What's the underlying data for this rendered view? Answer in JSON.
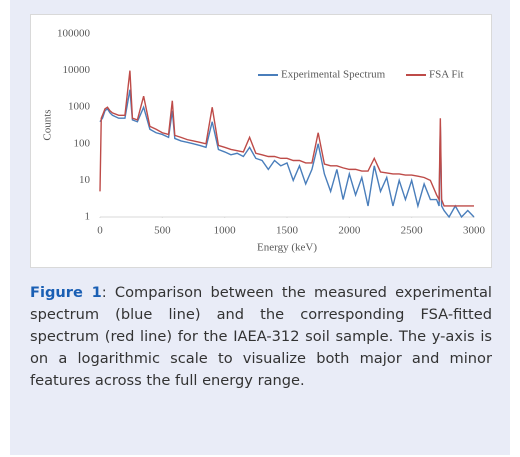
{
  "chart_data": {
    "type": "line",
    "xlabel": "Energy (keV)",
    "ylabel": "Counts",
    "xlim": [
      0,
      3000
    ],
    "xticks": [
      0,
      500,
      1000,
      1500,
      2000,
      2500,
      3000
    ],
    "ylim": [
      1,
      100000
    ],
    "yticks": [
      1,
      10,
      100,
      1000,
      10000,
      100000
    ],
    "yscale": "log",
    "grid": false,
    "x": [
      0,
      10,
      20,
      40,
      60,
      80,
      100,
      150,
      200,
      240,
      260,
      300,
      350,
      400,
      450,
      500,
      550,
      580,
      600,
      650,
      700,
      750,
      800,
      850,
      900,
      950,
      1000,
      1050,
      1100,
      1150,
      1200,
      1250,
      1300,
      1350,
      1400,
      1450,
      1500,
      1550,
      1600,
      1650,
      1700,
      1750,
      1800,
      1850,
      1900,
      1950,
      2000,
      2050,
      2100,
      2150,
      2200,
      2250,
      2300,
      2350,
      2400,
      2450,
      2500,
      2550,
      2600,
      2650,
      2700,
      2720,
      2730,
      2740,
      2760,
      2800,
      2850,
      2900,
      2950,
      3000
    ],
    "series": [
      {
        "name": "Experimental Spectrum",
        "color": "#4a7ebb",
        "values": [
          400,
          450,
          500,
          800,
          900,
          700,
          600,
          500,
          500,
          3000,
          450,
          400,
          1000,
          250,
          200,
          180,
          150,
          800,
          140,
          120,
          110,
          100,
          90,
          80,
          400,
          70,
          60,
          50,
          55,
          45,
          80,
          40,
          35,
          20,
          35,
          25,
          30,
          10,
          25,
          8,
          20,
          100,
          15,
          5,
          20,
          3,
          15,
          4,
          12,
          2,
          25,
          5,
          12,
          2,
          10,
          3,
          10,
          2,
          8,
          3,
          3,
          2,
          300,
          2,
          1.5,
          1,
          2,
          1,
          1.5,
          1
        ]
      },
      {
        "name": "FSA Fit",
        "color": "#be4b48",
        "values": [
          5,
          500,
          600,
          900,
          1000,
          800,
          700,
          600,
          600,
          10000,
          500,
          450,
          2000,
          300,
          250,
          200,
          180,
          1500,
          170,
          150,
          130,
          120,
          110,
          100,
          1000,
          90,
          80,
          70,
          65,
          60,
          150,
          55,
          50,
          45,
          45,
          40,
          40,
          35,
          35,
          30,
          30,
          200,
          28,
          25,
          25,
          22,
          20,
          20,
          18,
          18,
          40,
          17,
          16,
          15,
          15,
          14,
          14,
          13,
          12,
          10,
          4,
          3,
          500,
          3,
          2,
          2,
          2,
          2,
          2,
          2
        ]
      }
    ]
  },
  "caption": {
    "label": "Figure 1",
    "text": ": Comparison between the measured experimental spectrum (blue line) and the corresponding FSA-fitted spectrum (red line) for the IAEA-312 soil sample.  The y-axis is on a logarithmic scale to visualize both major and minor features across the full energy range."
  }
}
